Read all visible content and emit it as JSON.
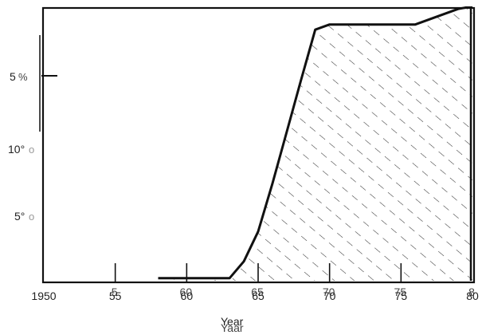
{
  "chart_data": {
    "type": "area",
    "title": "",
    "xlabel": "Year",
    "xlabel_ghost": "Yaar",
    "ylabel": "",
    "x_ticks": [
      {
        "value": 1950,
        "label": "1950"
      },
      {
        "value": 1955,
        "label": "55",
        "overlay": "5"
      },
      {
        "value": 1960,
        "label": "60",
        "overlay": "60"
      },
      {
        "value": 1965,
        "label": "65",
        "overlay": "65"
      },
      {
        "value": 1970,
        "label": "70",
        "overlay": "70"
      },
      {
        "value": 1975,
        "label": "75",
        "overlay": "75"
      },
      {
        "value": 1980,
        "label": "80",
        "overlay": "8"
      }
    ],
    "y_labels": [
      {
        "text": "5",
        "suffix": "%",
        "level": "upper"
      },
      {
        "text": "10°",
        "suffix": "o",
        "level": "middle"
      },
      {
        "text": "5°",
        "suffix": "o",
        "level": "lower"
      }
    ],
    "series": [
      {
        "x": [
          1958,
          1963,
          1964,
          1965,
          1966,
          1967,
          1968,
          1969,
          1970,
          1971,
          1972,
          1973,
          1974,
          1975,
          1976,
          1977,
          1978,
          1979,
          1980
        ],
        "y": [
          0.2,
          0.2,
          1.5,
          3.8,
          7.5,
          11.5,
          15.5,
          19.4,
          19.8,
          19.8,
          19.8,
          19.8,
          19.8,
          19.8,
          19.8,
          20.2,
          20.6,
          21.0,
          21.2
        ]
      }
    ],
    "xlim": [
      1950,
      1980
    ],
    "ylim": [
      0,
      21.2
    ],
    "fill": "diagonal hatch",
    "line_color": "#111111",
    "hatch_color": "#333333"
  }
}
